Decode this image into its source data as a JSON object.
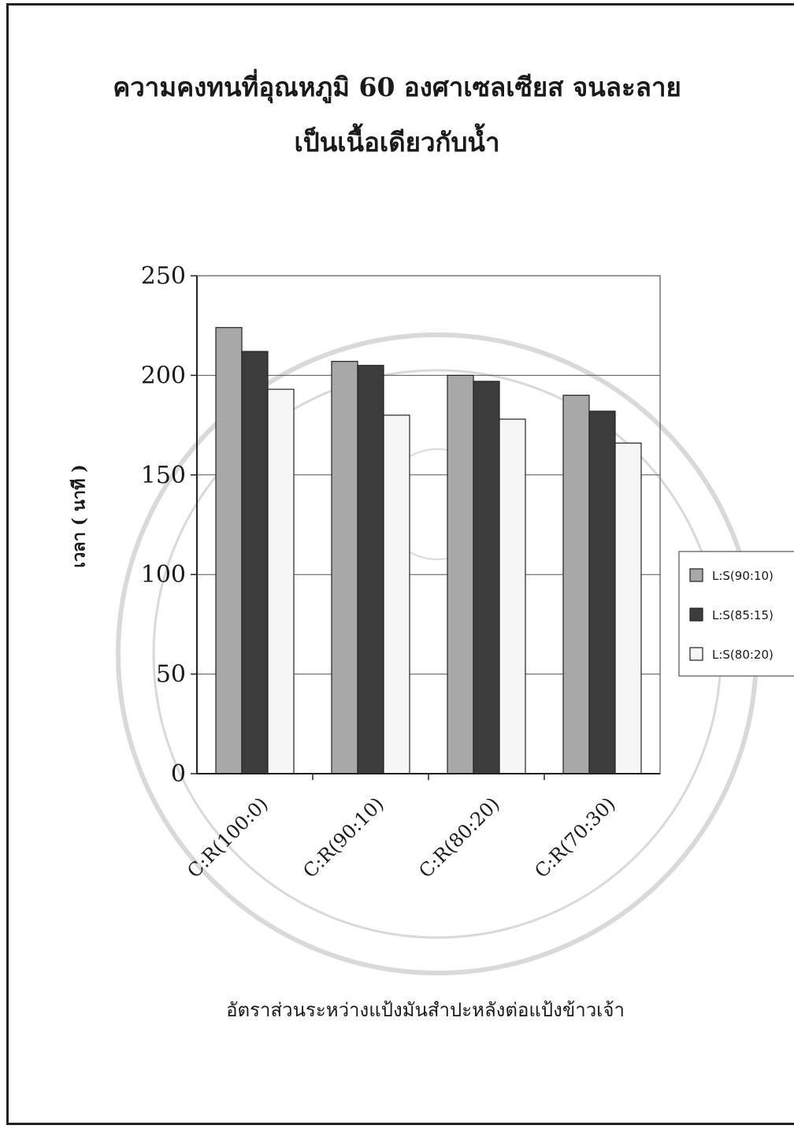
{
  "chart_data": {
    "type": "bar",
    "title": "ความคงทนที่อุณหภูมิ 60 องศาเซลเซียส จนละลาย",
    "subtitle": "เป็นเนื้อเดียวกับน้ำ",
    "xlabel": "อัตราส่วนระหว่างแป้งมันสำปะหลังต่อแป้งข้าวเจ้า",
    "ylabel": "เวลา ( นาที )",
    "categories": [
      "C:R(100:0)",
      "C:R(90:10)",
      "C:R(80:20)",
      "C:R(70:30)"
    ],
    "series": [
      {
        "name": "L:S(90:10)",
        "values": [
          224,
          207,
          200,
          190
        ],
        "color": "#a8a8a8"
      },
      {
        "name": "L:S(85:15)",
        "values": [
          212,
          205,
          197,
          182
        ],
        "color": "#3c3c3c"
      },
      {
        "name": "L:S(80:20)",
        "values": [
          193,
          180,
          178,
          166
        ],
        "color": "#f6f6f6"
      }
    ],
    "ylim": [
      0,
      250
    ],
    "yticks": [
      0,
      50,
      100,
      150,
      200,
      250
    ],
    "grid": true,
    "legend": "right"
  }
}
